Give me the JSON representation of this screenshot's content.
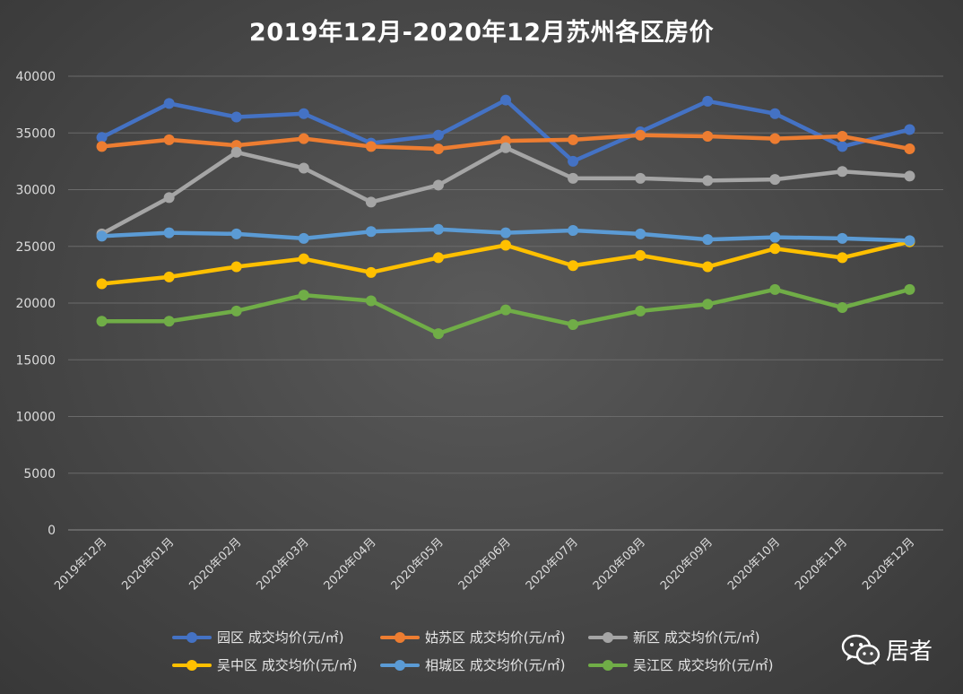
{
  "chart_data": {
    "type": "line",
    "title": "2019年12月-2020年12月苏州各区房价",
    "xlabel": "",
    "ylabel": "",
    "ylim": [
      0,
      40000
    ],
    "yticks": [
      0,
      5000,
      10000,
      15000,
      20000,
      25000,
      30000,
      35000,
      40000
    ],
    "grid": true,
    "legend_position": "bottom",
    "categories": [
      "2019年12月",
      "2020年01月",
      "2020年02月",
      "2020年03月",
      "2020年04月",
      "2020年05月",
      "2020年06月",
      "2020年07月",
      "2020年08月",
      "2020年09月",
      "2020年10月",
      "2020年11月",
      "2020年12月"
    ],
    "series": [
      {
        "name": "园区 成交均价(元/㎡)",
        "color": "#4472c4",
        "values": [
          34600,
          37600,
          36400,
          36700,
          34100,
          34800,
          37900,
          32500,
          35100,
          37800,
          36700,
          33800,
          35300
        ]
      },
      {
        "name": "姑苏区 成交均价(元/㎡)",
        "color": "#ed7d31",
        "values": [
          33800,
          34400,
          33900,
          34500,
          33800,
          33600,
          34300,
          34400,
          34800,
          34700,
          34500,
          34700,
          33600
        ]
      },
      {
        "name": "新区 成交均价(元/㎡)",
        "color": "#a5a5a5",
        "values": [
          26100,
          29300,
          33300,
          31900,
          28900,
          30400,
          33700,
          31000,
          31000,
          30800,
          30900,
          31600,
          31200
        ]
      },
      {
        "name": "吴中区 成交均价(元/㎡)",
        "color": "#ffc000",
        "values": [
          21700,
          22300,
          23200,
          23900,
          22700,
          24000,
          25100,
          23300,
          24200,
          23200,
          24800,
          24000,
          25400
        ]
      },
      {
        "name": "相城区 成交均价(元/㎡)",
        "color": "#5b9bd5",
        "values": [
          25900,
          26200,
          26100,
          25700,
          26300,
          26500,
          26200,
          26400,
          26100,
          25600,
          25800,
          25700,
          25500
        ]
      },
      {
        "name": "吴江区 成交均价(元/㎡)",
        "color": "#70ad47",
        "values": [
          18400,
          18400,
          19300,
          20700,
          20200,
          17300,
          19400,
          18100,
          19300,
          19900,
          21200,
          19600,
          21200
        ]
      }
    ]
  },
  "watermark": {
    "text": "居者",
    "icon": "wechat-icon"
  }
}
